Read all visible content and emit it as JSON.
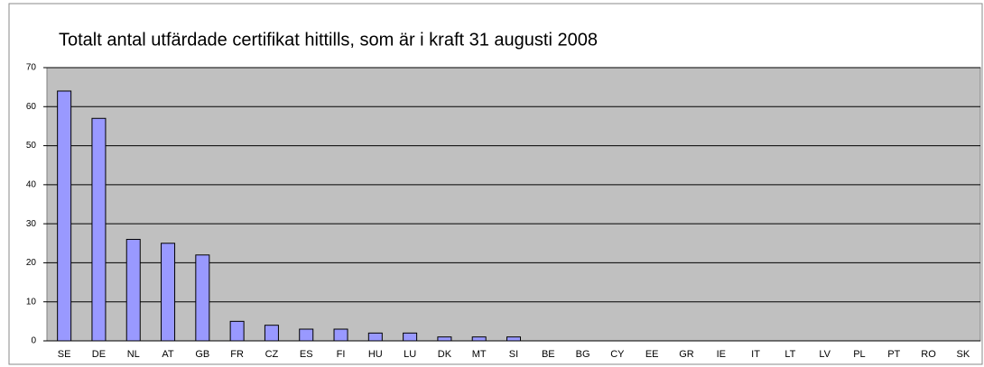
{
  "chart_data": {
    "type": "bar",
    "title": "Totalt antal utfärdade certifikat hittills, som är i kraft 31 augusti 2008",
    "categories": [
      "SE",
      "DE",
      "NL",
      "AT",
      "GB",
      "FR",
      "CZ",
      "ES",
      "FI",
      "HU",
      "LU",
      "DK",
      "MT",
      "SI",
      "BE",
      "BG",
      "CY",
      "EE",
      "GR",
      "IE",
      "IT",
      "LT",
      "LV",
      "PL",
      "PT",
      "RO",
      "SK"
    ],
    "values": [
      64,
      57,
      26,
      25,
      22,
      5,
      4,
      3,
      3,
      2,
      2,
      1,
      1,
      1,
      0,
      0,
      0,
      0,
      0,
      0,
      0,
      0,
      0,
      0,
      0,
      0,
      0
    ],
    "color": "#9999ff",
    "ylim": [
      0,
      70
    ],
    "yticks": [
      0,
      10,
      20,
      30,
      40,
      50,
      60,
      70
    ],
    "grid": true
  }
}
